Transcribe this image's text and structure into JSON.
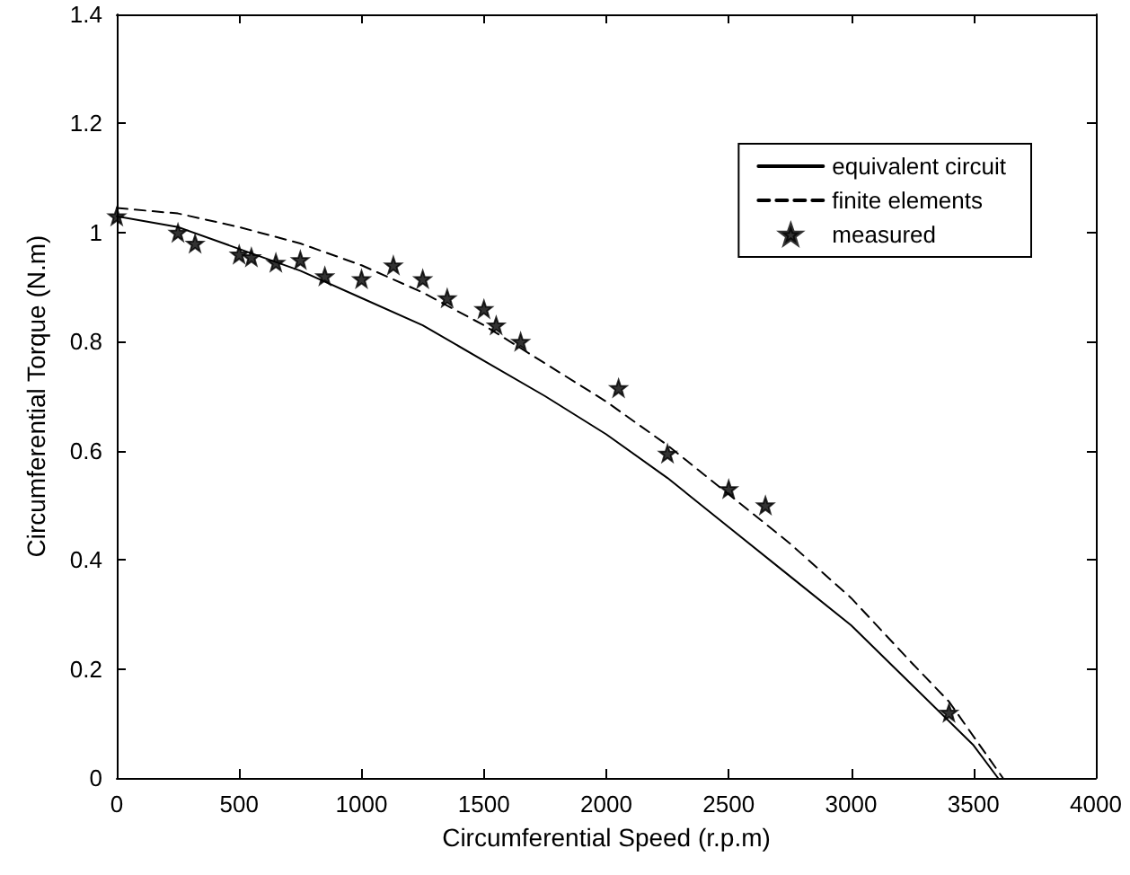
{
  "chart_data": {
    "type": "line",
    "xlabel": "Circumferential Speed (r.p.m)",
    "ylabel": "Circumferential Torque (N.m)",
    "xlim": [
      0,
      4000
    ],
    "xticks": [
      0,
      500,
      1000,
      1500,
      2000,
      2500,
      3000,
      3500,
      4000
    ],
    "ylim": [
      0,
      1.4
    ],
    "yticks": [
      0,
      0.2,
      0.4,
      0.6,
      0.8,
      1,
      1.2,
      1.4
    ],
    "grid": false,
    "legend": "top right",
    "series": [
      {
        "name": "equivalent circuit",
        "color": "#000000",
        "line_style": "solid",
        "marker": "none",
        "x": [
          0,
          250,
          500,
          750,
          1000,
          1250,
          1500,
          1750,
          2000,
          2250,
          2500,
          2750,
          3000,
          3250,
          3500,
          3600
        ],
        "values": [
          1.03,
          1.01,
          0.97,
          0.93,
          0.88,
          0.83,
          0.765,
          0.7,
          0.63,
          0.55,
          0.46,
          0.37,
          0.28,
          0.17,
          0.06,
          0
        ]
      },
      {
        "name": "finite elements",
        "color": "#000000",
        "line_style": "dashed",
        "marker": "none",
        "x": [
          0,
          250,
          500,
          750,
          1000,
          1250,
          1500,
          1750,
          2000,
          2250,
          2500,
          2750,
          3000,
          3250,
          3400,
          3620
        ],
        "values": [
          1.045,
          1.035,
          1.01,
          0.98,
          0.94,
          0.89,
          0.83,
          0.76,
          0.69,
          0.61,
          0.52,
          0.43,
          0.33,
          0.21,
          0.14,
          0
        ]
      },
      {
        "name": "measured",
        "type": "scatter",
        "color": "#000000",
        "marker": "star",
        "x": [
          0,
          250,
          320,
          500,
          550,
          650,
          750,
          850,
          1000,
          1130,
          1250,
          1350,
          1500,
          1550,
          1650,
          2050,
          2250,
          2500,
          2650,
          3400
        ],
        "values": [
          1.03,
          1.0,
          0.98,
          0.96,
          0.955,
          0.945,
          0.95,
          0.92,
          0.915,
          0.94,
          0.915,
          0.88,
          0.86,
          0.83,
          0.8,
          0.715,
          0.595,
          0.53,
          0.5,
          0.12
        ]
      }
    ]
  }
}
